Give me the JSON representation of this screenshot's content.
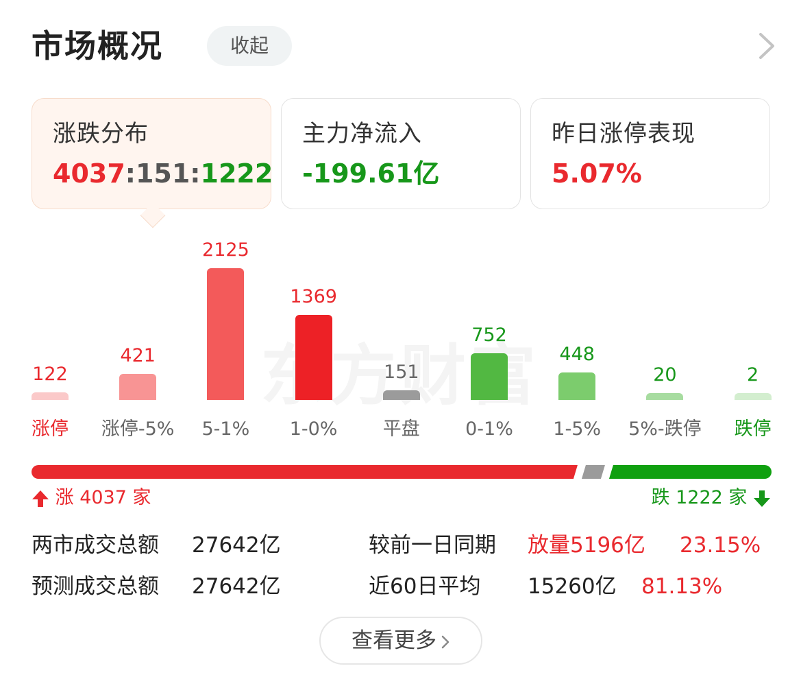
{
  "header": {
    "title": "市场概况",
    "collapse_label": "收起"
  },
  "cards": [
    {
      "label": "涨跌分布",
      "value_up": "4037",
      "sep1": ":",
      "value_flat": "151",
      "sep2": ":",
      "value_down": "1222"
    },
    {
      "label": "主力净流入",
      "value": "-199.61亿"
    },
    {
      "label": "昨日涨停表现",
      "value": "5.07%"
    }
  ],
  "watermark": "东方财富",
  "chart_data": {
    "type": "bar",
    "categories": [
      "涨停",
      "涨停-5%",
      "5-1%",
      "1-0%",
      "平盘",
      "0-1%",
      "1-5%",
      "5%-跌停",
      "跌停"
    ],
    "values": [
      122,
      421,
      2125,
      1369,
      151,
      752,
      448,
      20,
      2
    ],
    "value_labels": [
      "122",
      "421",
      "2125",
      "1369",
      "151",
      "752",
      "448",
      "20",
      "2"
    ],
    "colors": [
      "#fbc9c9",
      "#f89494",
      "#f35a5a",
      "#ed2126",
      "#9b9b9b",
      "#52b842",
      "#7ccc6d",
      "#a7dca0",
      "#d3eecf"
    ],
    "label_colors": [
      "#e9292e",
      "#e9292e",
      "#e9292e",
      "#e9292e",
      "#666666",
      "#17971a",
      "#17971a",
      "#17971a",
      "#17971a"
    ]
  },
  "ratio": {
    "up": 4037,
    "flat": 151,
    "down": 1222,
    "up_color": "#e9292e",
    "flat_color": "#9b9b9b",
    "down_color": "#10a010"
  },
  "legend": {
    "up_text": "涨",
    "up_count": "4037",
    "up_unit": "家",
    "down_text": "跌",
    "down_count": "1222",
    "down_unit": "家"
  },
  "stats": {
    "row1": {
      "label": "两市成交总额",
      "value": "27642亿",
      "label2": "较前一日同期",
      "extra1": "放量5196亿",
      "extra2": "23.15%"
    },
    "row2": {
      "label": "预测成交总额",
      "value": "27642亿",
      "label2": "近60日平均",
      "extra1": "15260亿",
      "extra2": "81.13%"
    }
  },
  "more_label": "查看更多"
}
